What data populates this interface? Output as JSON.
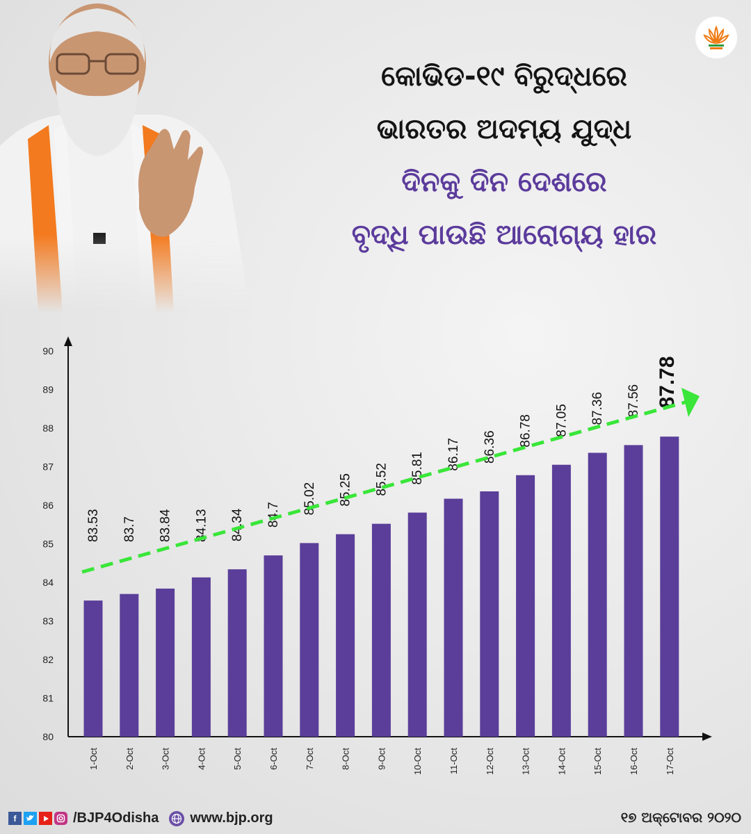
{
  "headline": {
    "line1": "କୋଭିଡ-୧୯ ବିରୁଦ୍ଧରେ",
    "line2": "ଭାରତର ଅଦମ୍ୟ ଯୁଦ୍ଧ",
    "line3": "ଦିନକୁ ଦିନ ଦେଶରେ",
    "line4": "ବୃଦ୍ଧି ପାଉଛି ଆରୋଗ୍ୟ ହାର"
  },
  "colors": {
    "bar": "#5a3e99",
    "trend": "#39e639",
    "headline_accent": "#5b3b9c",
    "logo": "#f07b14"
  },
  "chart_data": {
    "type": "bar",
    "categories": [
      "1-Oct",
      "2-Oct",
      "3-Oct",
      "4-Oct",
      "5-Oct",
      "6-Oct",
      "7-Oct",
      "8-Oct",
      "9-Oct",
      "10-Oct",
      "11-Oct",
      "12-Oct",
      "13-Oct",
      "14-Oct",
      "15-Oct",
      "16-Oct",
      "17-Oct"
    ],
    "values": [
      83.53,
      83.7,
      83.84,
      84.13,
      84.34,
      84.7,
      85.02,
      85.25,
      85.52,
      85.81,
      86.17,
      86.36,
      86.78,
      87.05,
      87.36,
      87.56,
      87.78
    ],
    "value_labels": [
      "83.53",
      "83.7",
      "83.84",
      "84.13",
      "84.34",
      "84.7",
      "85.02",
      "85.25",
      "85.52",
      "85.81",
      "86.17",
      "86.36",
      "86.78",
      "87.05",
      "87.36",
      "87.56",
      "87.78"
    ],
    "y_ticks": [
      "80",
      "81",
      "82",
      "83",
      "84",
      "85",
      "86",
      "87",
      "88",
      "89",
      "90"
    ],
    "ylim": [
      80,
      90
    ],
    "trend_line": "dashed, rising",
    "title": "",
    "xlabel": "",
    "ylabel": ""
  },
  "footer": {
    "social_icons": [
      "facebook-icon",
      "twitter-icon",
      "youtube-icon",
      "instagram-icon"
    ],
    "handle": "/BJP4Odisha",
    "website": "www.bjp.org",
    "date": "୧୭ ଅକ୍ଟୋବର ୨୦୨୦"
  }
}
